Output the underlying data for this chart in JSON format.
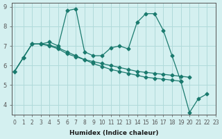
{
  "xlabel": "Humidex (Indice chaleur)",
  "ylabel": "",
  "background_color": "#d4f0f0",
  "line_color": "#1a7a6e",
  "grid_color": "#b0dada",
  "xlim": [
    0,
    23
  ],
  "ylim": [
    3.5,
    9.2
  ],
  "yticks": [
    4,
    5,
    6,
    7,
    8,
    9
  ],
  "xticks": [
    0,
    1,
    2,
    3,
    4,
    5,
    6,
    7,
    8,
    9,
    10,
    11,
    12,
    13,
    14,
    15,
    16,
    17,
    18,
    19,
    20,
    21,
    22,
    23
  ],
  "series": [
    {
      "x": [
        0,
        1,
        2,
        3,
        4,
        5,
        6,
        7,
        8,
        9,
        10,
        11,
        12,
        13,
        14,
        15,
        16,
        17,
        18,
        19,
        20,
        21,
        22
      ],
      "y": [
        5.7,
        6.4,
        7.1,
        7.1,
        7.2,
        7.0,
        8.8,
        8.9,
        6.7,
        6.5,
        6.5,
        6.9,
        7.0,
        6.85,
        8.2,
        8.65,
        8.65,
        7.8,
        6.5,
        5.2,
        3.6,
        4.3,
        4.55
      ]
    },
    {
      "x": [
        0,
        1,
        2,
        3,
        4,
        5,
        6,
        7,
        8,
        9,
        10,
        11,
        12,
        13,
        14,
        15,
        16,
        17,
        18,
        19,
        20
      ],
      "y": [
        5.7,
        6.4,
        7.1,
        7.1,
        7.0,
        6.85,
        6.6,
        6.45,
        6.3,
        6.2,
        6.1,
        6.0,
        5.9,
        5.8,
        5.7,
        5.65,
        5.6,
        5.55,
        5.5,
        5.45,
        5.4
      ]
    },
    {
      "x": [
        0,
        1,
        2,
        3,
        4,
        5,
        6,
        7,
        8,
        9,
        10,
        11,
        12,
        13,
        14,
        15,
        16,
        17,
        18,
        19
      ],
      "y": [
        5.7,
        6.4,
        7.1,
        7.1,
        7.05,
        6.9,
        6.7,
        6.5,
        6.3,
        6.1,
        5.95,
        5.8,
        5.7,
        5.6,
        5.5,
        5.4,
        5.35,
        5.3,
        5.25,
        5.2
      ]
    }
  ]
}
